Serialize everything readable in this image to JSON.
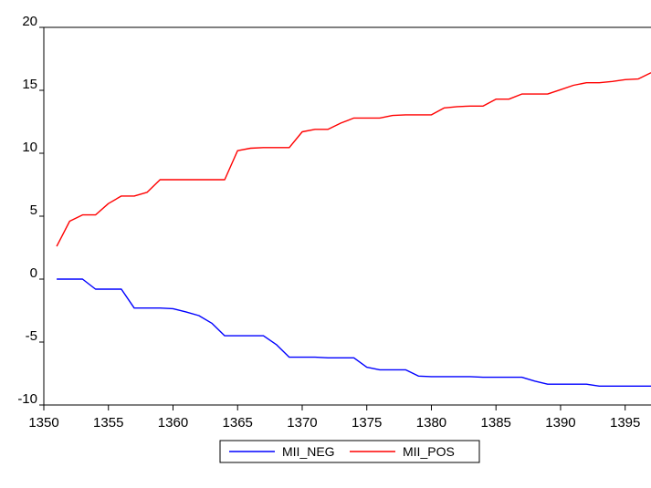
{
  "chart_data": {
    "type": "line",
    "title": "",
    "xlabel": "",
    "ylabel": "",
    "xlim": [
      1350,
      1397
    ],
    "ylim": [
      -10,
      20
    ],
    "xticks": [
      1350,
      1355,
      1360,
      1365,
      1370,
      1375,
      1380,
      1385,
      1390,
      1395
    ],
    "yticks": [
      -10,
      -5,
      0,
      5,
      10,
      15,
      20
    ],
    "grid": false,
    "legend_position": "bottom-center",
    "x": [
      1351,
      1352,
      1353,
      1354,
      1355,
      1356,
      1357,
      1358,
      1359,
      1360,
      1361,
      1362,
      1363,
      1364,
      1365,
      1366,
      1367,
      1368,
      1369,
      1370,
      1371,
      1372,
      1373,
      1374,
      1375,
      1376,
      1377,
      1378,
      1379,
      1380,
      1381,
      1382,
      1383,
      1384,
      1385,
      1386,
      1387,
      1388,
      1389,
      1390,
      1391,
      1392,
      1393,
      1394,
      1395,
      1396,
      1397
    ],
    "series": [
      {
        "name": "MII_NEG",
        "color": "#0000ff",
        "values": [
          0,
          0,
          0,
          -0.8,
          -0.8,
          -0.8,
          -2.3,
          -2.3,
          -2.3,
          -2.35,
          -2.6,
          -2.9,
          -3.5,
          -4.5,
          -4.5,
          -4.5,
          -4.5,
          -5.2,
          -6.2,
          -6.2,
          -6.2,
          -6.25,
          -6.25,
          -6.25,
          -7.0,
          -7.2,
          -7.2,
          -7.2,
          -7.7,
          -7.75,
          -7.75,
          -7.75,
          -7.75,
          -7.8,
          -7.8,
          -7.8,
          -7.8,
          -8.1,
          -8.35,
          -8.35,
          -8.35,
          -8.35,
          -8.5,
          -8.5,
          -8.5,
          -8.5,
          -8.5
        ]
      },
      {
        "name": "MII_POS",
        "color": "#ff0000",
        "values": [
          2.6,
          4.6,
          5.1,
          5.1,
          6.0,
          6.6,
          6.6,
          6.9,
          7.9,
          7.9,
          7.9,
          7.9,
          7.9,
          7.9,
          10.2,
          10.4,
          10.45,
          10.45,
          10.45,
          11.7,
          11.9,
          11.9,
          12.4,
          12.8,
          12.8,
          12.8,
          13.0,
          13.05,
          13.05,
          13.05,
          13.6,
          13.7,
          13.75,
          13.75,
          14.3,
          14.3,
          14.7,
          14.7,
          14.7,
          15.05,
          15.4,
          15.6,
          15.6,
          15.7,
          15.85,
          15.9,
          16.4
        ]
      }
    ]
  }
}
